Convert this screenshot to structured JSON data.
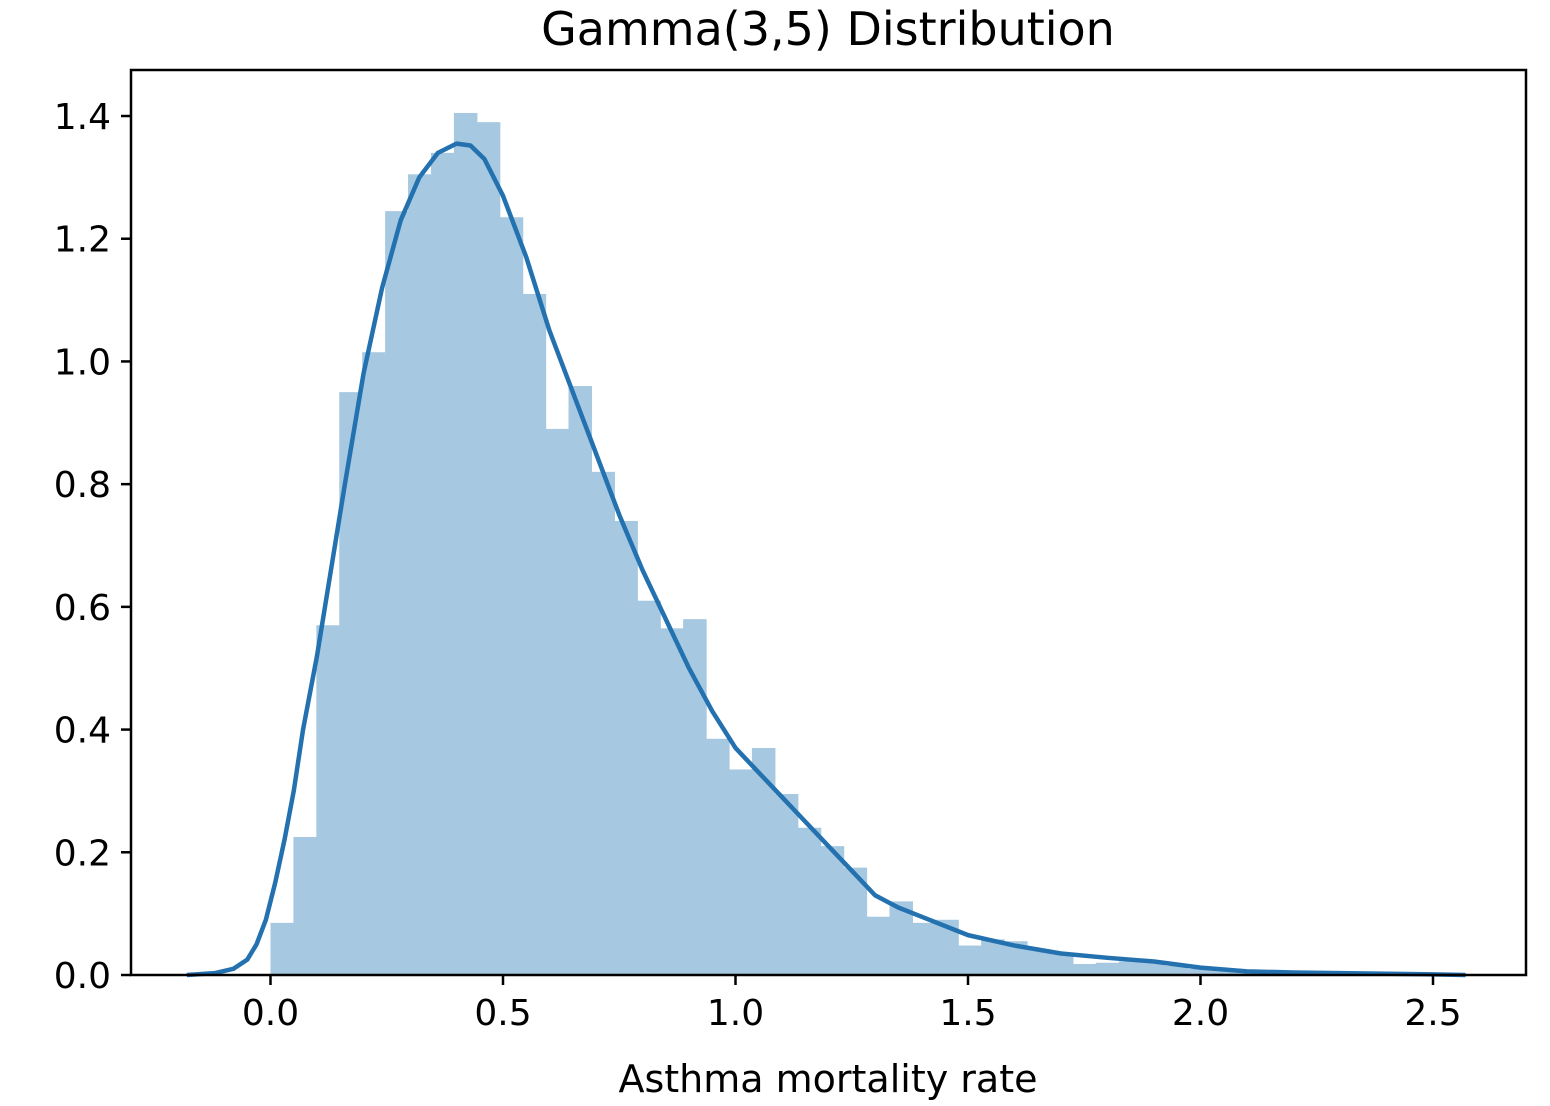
{
  "chart_data": {
    "type": "bar",
    "title": "Gamma(3,5) Distribution",
    "xlabel": "Asthma mortality rate",
    "ylabel": "",
    "xlim": [
      -0.3,
      2.7
    ],
    "ylim": [
      0,
      1.475
    ],
    "x_ticks": [
      0.0,
      0.5,
      1.0,
      1.5,
      2.0,
      2.5
    ],
    "x_tick_labels": [
      "0.0",
      "0.5",
      "1.0",
      "1.5",
      "2.0",
      "2.5"
    ],
    "y_ticks": [
      0.0,
      0.2,
      0.4,
      0.6,
      0.8,
      1.0,
      1.2,
      1.4
    ],
    "y_tick_labels": [
      "0.0",
      "0.2",
      "0.4",
      "0.6",
      "0.8",
      "1.0",
      "1.2",
      "1.4"
    ],
    "grid": false,
    "legend": null,
    "colors": {
      "bars": "#a6c8e0",
      "kde": "#2471b0",
      "axes": "#000000"
    },
    "histogram": {
      "bin_start": 0.0,
      "bin_width": 0.0493,
      "densities": [
        0.085,
        0.225,
        0.57,
        0.95,
        1.015,
        1.245,
        1.305,
        1.34,
        1.405,
        1.39,
        1.235,
        1.11,
        0.89,
        0.96,
        0.82,
        0.74,
        0.61,
        0.565,
        0.58,
        0.385,
        0.335,
        0.37,
        0.295,
        0.24,
        0.21,
        0.175,
        0.095,
        0.12,
        0.085,
        0.09,
        0.048,
        0.058,
        0.055,
        0.042,
        0.035,
        0.018,
        0.02,
        0.022,
        0.02,
        0.015,
        0.01,
        0.008,
        0.006,
        0.005,
        0.006,
        0.005,
        0.004,
        0.004,
        0.003,
        0.003,
        0.002,
        0.002,
        0.001
      ]
    },
    "series": [
      {
        "type": "line",
        "x": [
          -0.18,
          -0.12,
          -0.08,
          -0.05,
          -0.03,
          -0.01,
          0.01,
          0.03,
          0.05,
          0.07,
          0.1,
          0.13,
          0.16,
          0.2,
          0.24,
          0.28,
          0.32,
          0.36,
          0.4,
          0.43,
          0.46,
          0.5,
          0.55,
          0.6,
          0.65,
          0.7,
          0.75,
          0.8,
          0.85,
          0.9,
          0.95,
          1.0,
          1.05,
          1.1,
          1.15,
          1.2,
          1.25,
          1.3,
          1.35,
          1.4,
          1.5,
          1.6,
          1.7,
          1.8,
          1.9,
          2.0,
          2.1,
          2.2,
          2.3,
          2.4,
          2.5,
          2.57
        ],
        "y": [
          0.0,
          0.003,
          0.01,
          0.025,
          0.05,
          0.09,
          0.15,
          0.22,
          0.3,
          0.4,
          0.52,
          0.66,
          0.8,
          0.98,
          1.12,
          1.23,
          1.3,
          1.34,
          1.355,
          1.352,
          1.33,
          1.27,
          1.17,
          1.05,
          0.95,
          0.85,
          0.75,
          0.66,
          0.58,
          0.5,
          0.43,
          0.37,
          0.33,
          0.29,
          0.25,
          0.21,
          0.17,
          0.13,
          0.11,
          0.095,
          0.065,
          0.048,
          0.035,
          0.028,
          0.022,
          0.012,
          0.006,
          0.004,
          0.003,
          0.002,
          0.001,
          0.0
        ]
      }
    ]
  }
}
